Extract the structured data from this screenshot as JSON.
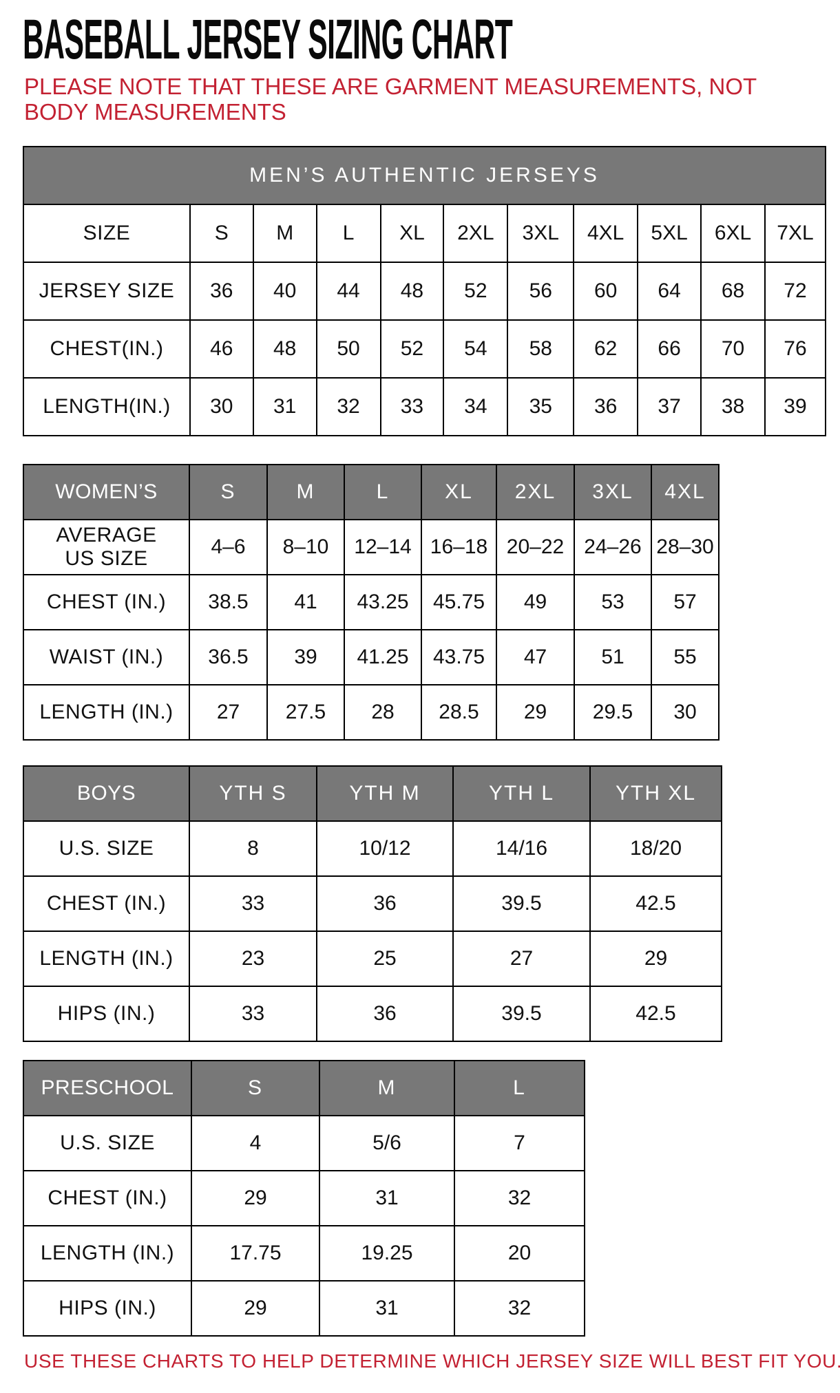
{
  "page": {
    "title": "BASEBALL JERSEY SIZING CHART",
    "note": "PLEASE NOTE THAT THESE ARE GARMENT MEASUREMENTS, NOT BODY MEASUREMENTS",
    "footer": "USE THESE CHARTS TO HELP DETERMINE WHICH JERSEY SIZE WILL BEST FIT YOU.",
    "colors": {
      "accent_red": "#c32132",
      "header_gray": "#787878",
      "border_black": "#000000"
    }
  },
  "tables": {
    "mens": {
      "banner": "MEN’S AUTHENTIC JERSEYS",
      "columns": [
        "SIZE",
        "S",
        "M",
        "L",
        "XL",
        "2XL",
        "3XL",
        "4XL",
        "5XL",
        "6XL",
        "7XL"
      ],
      "rows": [
        {
          "label": "JERSEY SIZE",
          "values": [
            "36",
            "40",
            "44",
            "48",
            "52",
            "56",
            "60",
            "64",
            "68",
            "72"
          ]
        },
        {
          "label": "CHEST(IN.)",
          "values": [
            "46",
            "48",
            "50",
            "52",
            "54",
            "58",
            "62",
            "66",
            "70",
            "76"
          ]
        },
        {
          "label": "LENGTH(IN.)",
          "values": [
            "30",
            "31",
            "32",
            "33",
            "34",
            "35",
            "36",
            "37",
            "38",
            "39"
          ]
        }
      ]
    },
    "womens": {
      "columns": [
        "WOMEN’S",
        "S",
        "M",
        "L",
        "XL",
        "2XL",
        "3XL",
        "4XL"
      ],
      "rows": [
        {
          "label": [
            "AVERAGE",
            "US SIZE"
          ],
          "values": [
            "4–6",
            "8–10",
            "12–14",
            "16–18",
            "20–22",
            "24–26",
            "28–30"
          ]
        },
        {
          "label": "CHEST (IN.)",
          "values": [
            "38.5",
            "41",
            "43.25",
            "45.75",
            "49",
            "53",
            "57"
          ]
        },
        {
          "label": "WAIST (IN.)",
          "values": [
            "36.5",
            "39",
            "41.25",
            "43.75",
            "47",
            "51",
            "55"
          ]
        },
        {
          "label": "LENGTH (IN.)",
          "values": [
            "27",
            "27.5",
            "28",
            "28.5",
            "29",
            "29.5",
            "30"
          ]
        }
      ]
    },
    "boys": {
      "columns": [
        "BOYS",
        "YTH S",
        "YTH M",
        "YTH L",
        "YTH XL"
      ],
      "rows": [
        {
          "label": "U.S. SIZE",
          "values": [
            "8",
            "10/12",
            "14/16",
            "18/20"
          ]
        },
        {
          "label": "CHEST (IN.)",
          "values": [
            "33",
            "36",
            "39.5",
            "42.5"
          ]
        },
        {
          "label": "LENGTH (IN.)",
          "values": [
            "23",
            "25",
            "27",
            "29"
          ]
        },
        {
          "label": "HIPS (IN.)",
          "values": [
            "33",
            "36",
            "39.5",
            "42.5"
          ]
        }
      ]
    },
    "preschool": {
      "columns": [
        "PRESCHOOL",
        "S",
        "M",
        "L"
      ],
      "rows": [
        {
          "label": "U.S. SIZE",
          "values": [
            "4",
            "5/6",
            "7"
          ]
        },
        {
          "label": "CHEST (IN.)",
          "values": [
            "29",
            "31",
            "32"
          ]
        },
        {
          "label": "LENGTH (IN.)",
          "values": [
            "17.75",
            "19.25",
            "20"
          ]
        },
        {
          "label": "HIPS (IN.)",
          "values": [
            "29",
            "31",
            "32"
          ]
        }
      ]
    }
  }
}
